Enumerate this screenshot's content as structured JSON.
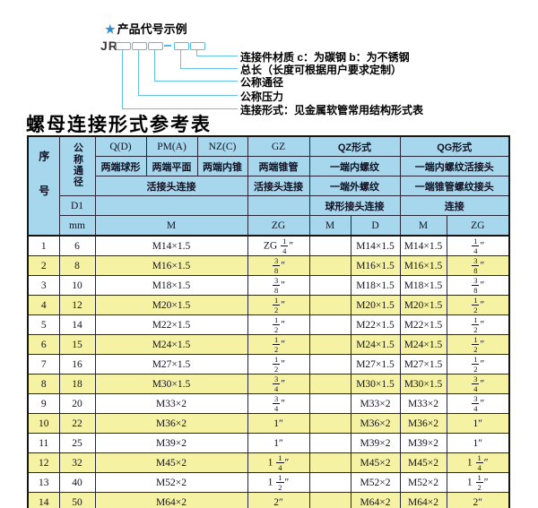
{
  "diagram": {
    "star": "★",
    "heading": "产品代号示例",
    "prefix": "JR",
    "labels": [
      "连接件材质  c：为碳钢  b：为不锈钢",
      "总长（长度可根据用户要求定制）",
      "公称通径",
      "公称压力",
      "连接形式：见金属软管常用结构形式表"
    ]
  },
  "table": {
    "title": "螺母连接形式参考表",
    "header": {
      "xuhao": "序号",
      "tongjing": "公称通径",
      "d1": "D1",
      "mm": "mm",
      "col_q": "Q(D)",
      "col_pm": "PM(A)",
      "col_nz": "NZ(C)",
      "col_gz": "GZ",
      "col_qz": "QZ形式",
      "col_qg": "QG形式",
      "q_desc": "两端球形",
      "pm_desc": "两端平面",
      "nz_desc": "两端内锥",
      "gz_desc": "两端锥管",
      "qz_desc1": "一端内螺纹",
      "qg_desc1": "一端内螺纹活接头",
      "union_conn": "活接头连接",
      "gz_conn": "活接头连接",
      "qz_desc2": "一端外螺纹",
      "qg_desc2": "一端锥管螺纹接头",
      "qz_conn": "球形接头连接",
      "qg_conn": "连接",
      "m": "M",
      "zg": "ZG",
      "qz_m": "M",
      "qz_d": "D",
      "qg_m": "M",
      "qg_zg": "ZG"
    },
    "rows": [
      {
        "no": "1",
        "mm": "6",
        "m": "M14×1.5",
        "gz": "ZG 1/4″",
        "qz_m": "",
        "qz_d": "M14×1.5",
        "qg_m": "M14×1.5",
        "qg_zg": "1/4″"
      },
      {
        "no": "2",
        "mm": "8",
        "m": "M16×1.5",
        "gz": "3/8″",
        "qz_m": "",
        "qz_d": "M16×1.5",
        "qg_m": "M16×1.5",
        "qg_zg": "3/8″"
      },
      {
        "no": "3",
        "mm": "10",
        "m": "M18×1.5",
        "gz": "3/8″",
        "qz_m": "",
        "qz_d": "M18×1.5",
        "qg_m": "M18×1.5",
        "qg_zg": "3/8″"
      },
      {
        "no": "4",
        "mm": "12",
        "m": "M20×1.5",
        "gz": "1/2″",
        "qz_m": "",
        "qz_d": "M20×1.5",
        "qg_m": "M20×1.5",
        "qg_zg": "1/2″"
      },
      {
        "no": "5",
        "mm": "14",
        "m": "M22×1.5",
        "gz": "1/2″",
        "qz_m": "",
        "qz_d": "M22×1.5",
        "qg_m": "M22×1.5",
        "qg_zg": "1/2″"
      },
      {
        "no": "6",
        "mm": "15",
        "m": "M24×1.5",
        "gz": "1/2″",
        "qz_m": "",
        "qz_d": "M24×1.5",
        "qg_m": "M24×1.5",
        "qg_zg": "1/2″"
      },
      {
        "no": "7",
        "mm": "16",
        "m": "M27×1.5",
        "gz": "1/2″",
        "qz_m": "",
        "qz_d": "M27×1.5",
        "qg_m": "M27×1.5",
        "qg_zg": "1/2″"
      },
      {
        "no": "8",
        "mm": "18",
        "m": "M30×1.5",
        "gz": "3/4″",
        "qz_m": "",
        "qz_d": "M30×1.5",
        "qg_m": "M30×1.5",
        "qg_zg": "3/4″"
      },
      {
        "no": "9",
        "mm": "20",
        "m": "M33×2",
        "gz": "3/4″",
        "qz_m": "",
        "qz_d": "M33×2",
        "qg_m": "M33×2",
        "qg_zg": "3/4″"
      },
      {
        "no": "10",
        "mm": "22",
        "m": "M36×2",
        "gz": "1″",
        "qz_m": "",
        "qz_d": "M36×2",
        "qg_m": "M36×2",
        "qg_zg": "1″"
      },
      {
        "no": "11",
        "mm": "25",
        "m": "M39×2",
        "gz": "1″",
        "qz_m": "",
        "qz_d": "M39×2",
        "qg_m": "M39×2",
        "qg_zg": "1″"
      },
      {
        "no": "12",
        "mm": "32",
        "m": "M45×2",
        "gz": "1 1/4″",
        "qz_m": "",
        "qz_d": "M45×2",
        "qg_m": "M45×2",
        "qg_zg": "1 1/4″"
      },
      {
        "no": "13",
        "mm": "40",
        "m": "M52×2",
        "gz": "1 1/2″",
        "qz_m": "",
        "qz_d": "M52×2",
        "qg_m": "M52×2",
        "qg_zg": "1 1/2″"
      },
      {
        "no": "14",
        "mm": "50",
        "m": "M64×2",
        "gz": "2″",
        "qz_m": "",
        "qz_d": "M64×2",
        "qg_m": "M64×2",
        "qg_zg": "2″"
      }
    ]
  }
}
